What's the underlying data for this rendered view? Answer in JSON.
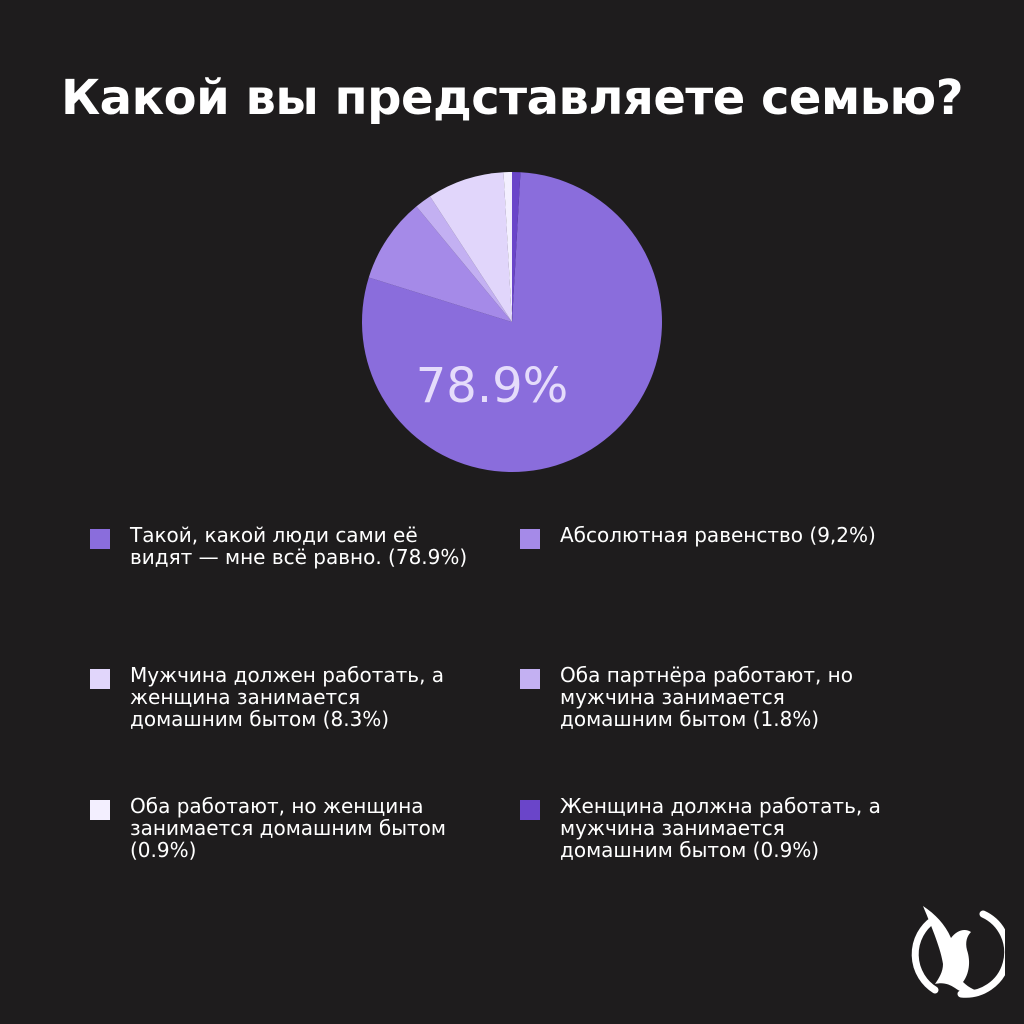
{
  "title": "Какой вы представляете семью?",
  "chart_data": {
    "type": "pie",
    "title": "Какой вы представляете семью?",
    "slices": [
      {
        "label": "Такой, какой люди сами её видят — мне всё равно. (78.9%)",
        "value": 78.9,
        "color": "#8a6ddc"
      },
      {
        "label": "Абсолютная равенство (9,2%)",
        "value": 9.2,
        "color": "#a58ae8"
      },
      {
        "label": "Мужчина должен работать, а женщина занимается домашним бытом (8.3%)",
        "value": 8.3,
        "color": "#e1d6fb"
      },
      {
        "label": "Оба партнёра работают, но мужчина занимается домашним бытом (1.8%)",
        "value": 1.8,
        "color": "#c3b0f2"
      },
      {
        "label": "Оба работают, но женщина занимается домашним бытом (0.9%)",
        "value": 0.9,
        "color": "#f3efff"
      },
      {
        "label": "Женщина должна работать, а мужчина занимается домашним бытом (0.9%)",
        "value": 0.9,
        "color": "#6a45c9"
      }
    ],
    "slice_order": [
      0,
      1,
      3,
      2,
      4,
      5
    ],
    "center_label": "78.9%",
    "legend_placement": "bottom"
  },
  "logo": {
    "icon": "bird-logo-icon"
  }
}
